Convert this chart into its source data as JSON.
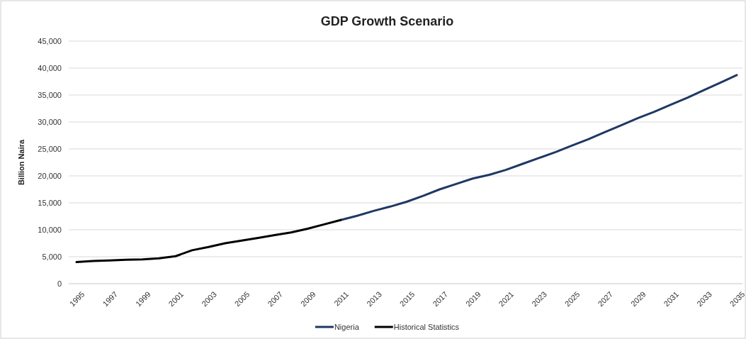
{
  "chart_data": {
    "type": "line",
    "title": "GDP Growth Scenario",
    "ylabel": "Billion Naira",
    "categories": [
      "1995",
      null,
      "1997",
      null,
      "1999",
      null,
      "2001",
      null,
      "2003",
      null,
      "2005",
      null,
      "2007",
      null,
      "2009",
      null,
      "2011",
      null,
      "2013",
      null,
      "2015",
      null,
      "2017",
      null,
      "2019",
      null,
      "2021",
      null,
      "2023",
      null,
      "2025",
      null,
      "2027",
      null,
      "2029",
      null,
      "2031",
      null,
      "2033",
      null,
      "2035"
    ],
    "series": [
      {
        "name": "Nigeria",
        "color": "#1f3864",
        "values": [
          null,
          null,
          null,
          null,
          null,
          null,
          null,
          null,
          null,
          null,
          null,
          null,
          null,
          null,
          null,
          null,
          11800,
          12600,
          13500,
          14300,
          15200,
          16300,
          17500,
          18500,
          19500,
          20200,
          21100,
          22200,
          23300,
          24400,
          25600,
          26800,
          28100,
          29400,
          30700,
          31900,
          33200,
          34500,
          35900,
          37300,
          38700
        ]
      },
      {
        "name": "Historical Statistics",
        "color": "#000000",
        "values": [
          4000,
          4200,
          4300,
          4450,
          4500,
          4700,
          5100,
          6200,
          6800,
          7500,
          8000,
          8500,
          9000,
          9500,
          10200,
          11000,
          11800,
          null,
          null,
          null,
          null,
          null,
          null,
          null,
          null,
          null,
          null,
          null,
          null,
          null,
          null,
          null,
          null,
          null,
          null,
          null,
          null,
          null,
          null,
          null,
          null
        ]
      }
    ],
    "ylim": [
      0,
      45000
    ],
    "yticks": [
      {
        "value": 0,
        "label": "0"
      },
      {
        "value": 5000,
        "label": "5,000"
      },
      {
        "value": 10000,
        "label": "10,000"
      },
      {
        "value": 15000,
        "label": "15,000"
      },
      {
        "value": 20000,
        "label": "20,000"
      },
      {
        "value": 25000,
        "label": "25,000"
      },
      {
        "value": 30000,
        "label": "30,000"
      },
      {
        "value": 35000,
        "label": "35,000"
      },
      {
        "value": 40000,
        "label": "40,000"
      },
      {
        "value": 45000,
        "label": "45,000"
      }
    ],
    "grid": "y",
    "legend": "bottom",
    "marker": "none",
    "line_style": "solid"
  }
}
